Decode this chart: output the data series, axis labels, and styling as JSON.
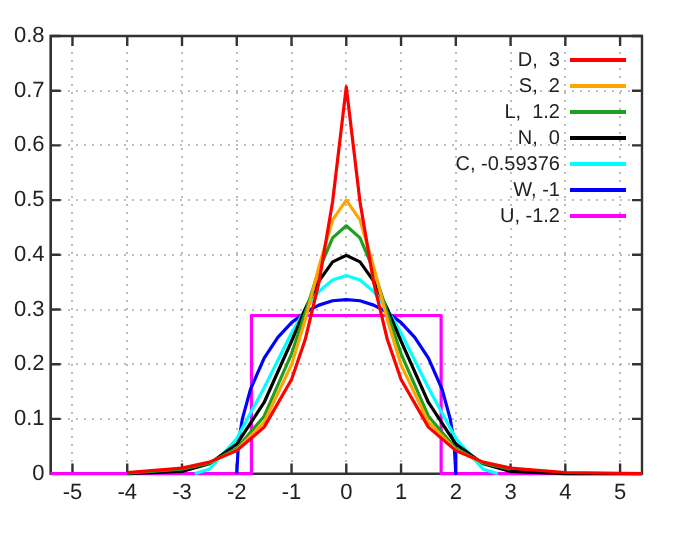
{
  "chart_data": {
    "type": "line",
    "xlim": [
      -5.4,
      5.4
    ],
    "xticks": [
      -5,
      -4,
      -3,
      -2,
      -1,
      0,
      1,
      2,
      3,
      4,
      5
    ],
    "ylim": [
      0,
      0.8
    ],
    "yticks": [
      0,
      0.1,
      0.2,
      0.3,
      0.4,
      0.5,
      0.6,
      0.7,
      0.8
    ],
    "grid": true,
    "legend": "top right",
    "marker": "none",
    "line_style": "solid",
    "series": [
      {
        "name": "D,  3",
        "color": "#ff0000",
        "x": [
          -4,
          -3,
          -2.5,
          -2,
          -1.5,
          -1,
          -0.75,
          -0.5,
          -0.25,
          0,
          0.25,
          0.5,
          0.75,
          1,
          1.5,
          2,
          2.5,
          3,
          4,
          5.4
        ],
        "values": [
          0.002,
          0.01,
          0.021,
          0.042,
          0.085,
          0.172,
          0.245,
          0.349,
          0.497,
          0.707,
          0.497,
          0.349,
          0.245,
          0.172,
          0.085,
          0.042,
          0.021,
          0.01,
          0.002,
          0
        ]
      },
      {
        "name": "S,  2",
        "color": "#ffa500",
        "x": [
          -2.5,
          -2,
          -1.5,
          -1,
          -0.75,
          -0.5,
          -0.25,
          0,
          0.25,
          0.5,
          0.75,
          1,
          1.5,
          2,
          2.5
        ],
        "values": [
          0.02,
          0.043,
          0.094,
          0.199,
          0.281,
          0.378,
          0.464,
          0.5,
          0.464,
          0.378,
          0.281,
          0.199,
          0.094,
          0.043,
          0.02
        ]
      },
      {
        "name": "L,  1.2",
        "color": "#1f9f1f",
        "x": [
          -4,
          -3,
          -2.5,
          -2,
          -1.5,
          -1,
          -0.75,
          -0.5,
          -0.25,
          0,
          0.25,
          0.5,
          0.75,
          1,
          1.5,
          2,
          2.5,
          3
        ],
        "values": [
          0.001,
          0.008,
          0.019,
          0.046,
          0.105,
          0.219,
          0.294,
          0.372,
          0.431,
          0.453,
          0.431,
          0.372,
          0.294,
          0.219,
          0.105,
          0.046,
          0.019,
          0.008
        ]
      },
      {
        "name": "N,  0",
        "color": "#000000",
        "x": [
          -4,
          -3,
          -2.5,
          -2,
          -1.5,
          -1,
          -0.75,
          -0.5,
          -0.25,
          0,
          0.25,
          0.5,
          0.75,
          1,
          1.5,
          2,
          2.5,
          3,
          4,
          5.4
        ],
        "values": [
          0,
          0.004,
          0.018,
          0.054,
          0.13,
          0.242,
          0.301,
          0.352,
          0.387,
          0.399,
          0.387,
          0.352,
          0.301,
          0.242,
          0.13,
          0.054,
          0.018,
          0.004,
          0,
          0
        ]
      },
      {
        "name": "C, -0.59376",
        "color": "#00ffff",
        "x": [
          -2.766,
          -2.5,
          -2,
          -1.5,
          -1,
          -0.75,
          -0.5,
          -0.25,
          0,
          0.25,
          0.5,
          0.75,
          1,
          1.5,
          2,
          2.5,
          2.766
        ],
        "values": [
          0,
          0.008,
          0.064,
          0.157,
          0.257,
          0.3,
          0.333,
          0.354,
          0.362,
          0.354,
          0.333,
          0.3,
          0.257,
          0.157,
          0.064,
          0.008,
          0
        ]
      },
      {
        "name": "W, -1",
        "color": "#0000ff",
        "x": [
          -2,
          -1.97,
          -1.9,
          -1.75,
          -1.5,
          -1.25,
          -1,
          -0.75,
          -0.5,
          -0.25,
          0,
          0.25,
          0.5,
          0.75,
          1,
          1.25,
          1.5,
          1.75,
          1.9,
          1.97,
          2
        ],
        "values": [
          0,
          0.055,
          0.099,
          0.154,
          0.211,
          0.249,
          0.276,
          0.295,
          0.308,
          0.316,
          0.318,
          0.316,
          0.308,
          0.295,
          0.276,
          0.249,
          0.211,
          0.154,
          0.099,
          0.055,
          0
        ]
      },
      {
        "name": "U, -1.2",
        "color": "#ff00ff",
        "x": [
          -5.4,
          -1.732,
          -1.732,
          1.732,
          1.732,
          5.4
        ],
        "values": [
          0,
          0,
          0.289,
          0.289,
          0,
          0
        ]
      }
    ]
  }
}
